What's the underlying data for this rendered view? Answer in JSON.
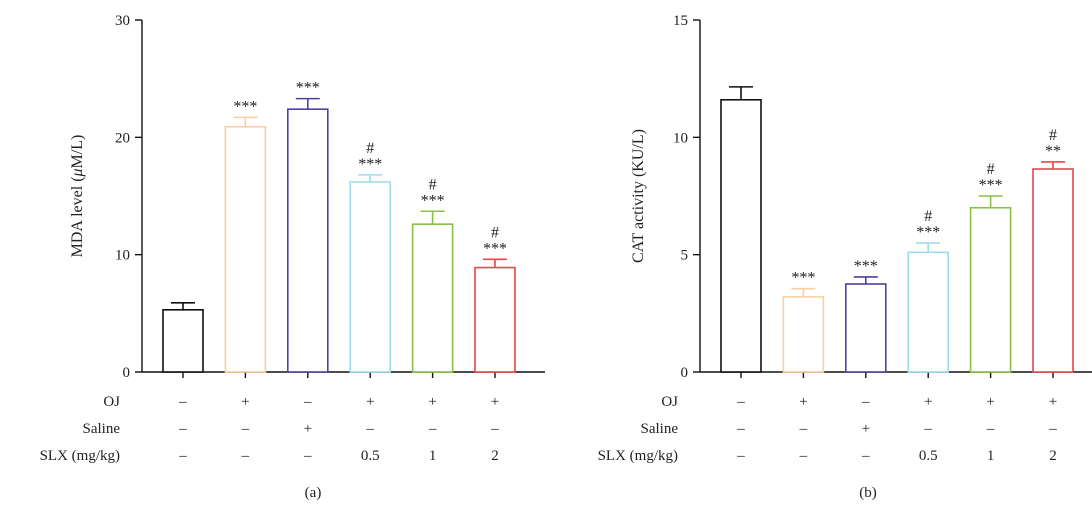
{
  "row_labels": [
    "OJ",
    "Saline",
    "SLX (mg/kg)"
  ],
  "conditions": [
    [
      "–",
      "–",
      "–"
    ],
    [
      "+",
      "–",
      "–"
    ],
    [
      "–",
      "+",
      "–"
    ],
    [
      "+",
      "–",
      "0.5"
    ],
    [
      "+",
      "–",
      "1"
    ],
    [
      "+",
      "–",
      "2"
    ]
  ],
  "colors": {
    "series": [
      "#111111",
      "#f8cfa0",
      "#5040a0",
      "#9fdcea",
      "#88c04a",
      "#e8474a"
    ],
    "axis": "#111111",
    "text": "#222222"
  },
  "chart_data": [
    {
      "type": "bar",
      "panel_label": "(a)",
      "ylabel_html": [
        "MDA level (",
        "μ",
        "M/L)"
      ],
      "ylim": [
        0,
        30
      ],
      "yticks": [
        0,
        10,
        20,
        30
      ],
      "values": [
        5.3,
        20.9,
        22.4,
        16.2,
        12.6,
        8.9
      ],
      "errors": [
        0.6,
        0.8,
        0.9,
        0.6,
        1.1,
        0.7
      ],
      "significance": [
        [
          "",
          ""
        ],
        [
          "",
          "***"
        ],
        [
          "",
          "***"
        ],
        [
          "#",
          "***"
        ],
        [
          "#",
          "***"
        ],
        [
          "#",
          "***"
        ]
      ],
      "grid": false,
      "legend": "none"
    },
    {
      "type": "bar",
      "panel_label": "(b)",
      "ylabel_html": [
        "CAT activity (KU/L)",
        "",
        ""
      ],
      "ylim": [
        0,
        15
      ],
      "yticks": [
        0,
        5,
        10,
        15
      ],
      "values": [
        11.6,
        3.2,
        3.75,
        5.1,
        7.0,
        8.65
      ],
      "errors": [
        0.55,
        0.35,
        0.3,
        0.4,
        0.5,
        0.3
      ],
      "significance": [
        [
          "",
          ""
        ],
        [
          "",
          "***"
        ],
        [
          "",
          "***"
        ],
        [
          "#",
          "***"
        ],
        [
          "#",
          "***"
        ],
        [
          "#",
          "**"
        ]
      ],
      "grid": false,
      "legend": "none"
    }
  ]
}
